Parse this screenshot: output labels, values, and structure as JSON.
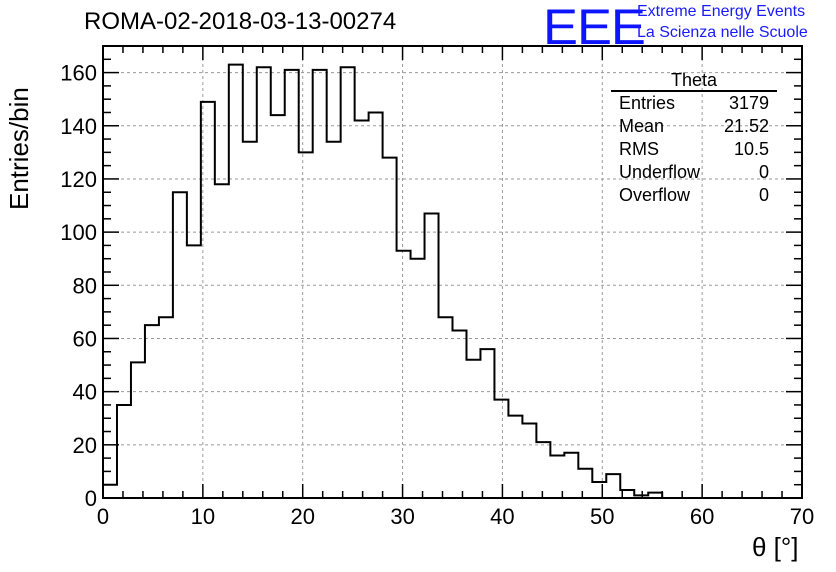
{
  "title": "ROMA-02-2018-03-13-00274",
  "logo": {
    "mark": "EEE",
    "line1": "Extreme Energy Events",
    "line2": "La Scienza nelle Scuole",
    "color": "#0d14ff"
  },
  "stats_box": {
    "title": "Theta",
    "rows": [
      {
        "label": "Entries",
        "value": "3179"
      },
      {
        "label": "Mean",
        "value": "21.52"
      },
      {
        "label": "RMS",
        "value": "10.5"
      },
      {
        "label": "Underflow",
        "value": "0"
      },
      {
        "label": "Overflow",
        "value": "0"
      }
    ]
  },
  "chart_data": {
    "type": "bar",
    "subtype": "histogram-step",
    "title": "ROMA-02-2018-03-13-00274",
    "xlabel": "θ [°]",
    "ylabel": "Entries/bin",
    "xlim": [
      0,
      70
    ],
    "ylim": [
      0,
      170
    ],
    "xticks": [
      0,
      10,
      20,
      30,
      40,
      50,
      60,
      70
    ],
    "yticks": [
      0,
      20,
      40,
      60,
      80,
      100,
      120,
      140,
      160
    ],
    "grid": true,
    "bin_width": 1.4,
    "bin_edges_start": 0,
    "values": [
      5,
      35,
      51,
      65,
      68,
      115,
      95,
      149,
      118,
      163,
      134,
      162,
      144,
      161,
      130,
      161,
      134,
      162,
      142,
      145,
      128,
      93,
      90,
      107,
      68,
      63,
      52,
      56,
      37,
      31,
      28,
      21,
      16,
      17,
      11,
      6,
      9,
      3,
      1,
      2,
      0,
      0,
      0,
      0,
      0,
      0,
      0,
      0,
      0,
      0
    ]
  }
}
